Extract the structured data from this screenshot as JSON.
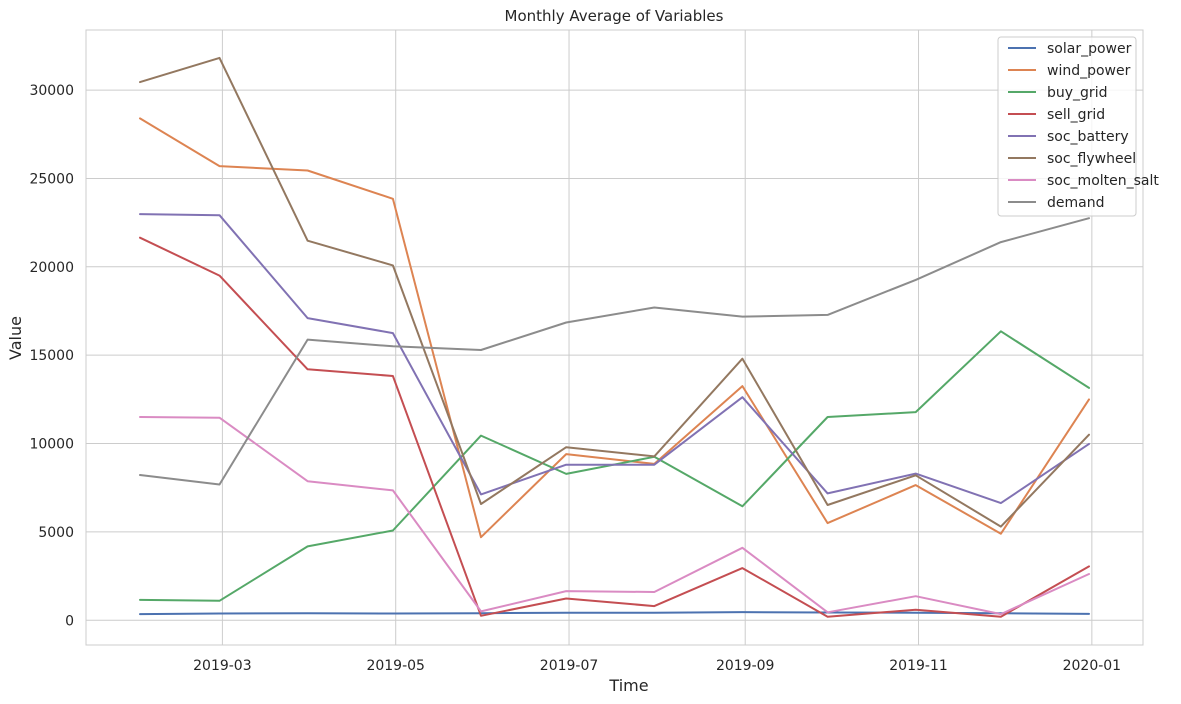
{
  "chart_data": {
    "type": "line",
    "title": "Monthly Average of Variables",
    "xlabel": "Time",
    "ylabel": "Value",
    "x": [
      "2019-01-31",
      "2019-02-28",
      "2019-03-31",
      "2019-04-30",
      "2019-05-31",
      "2019-06-30",
      "2019-07-31",
      "2019-08-31",
      "2019-09-30",
      "2019-10-31",
      "2019-11-30",
      "2019-12-31"
    ],
    "xlim": [
      "2019-01-12",
      "2020-01-19"
    ],
    "ylim": [
      -1400,
      33400
    ],
    "x_ticks": [
      {
        "value": "2019-03-01",
        "label": "2019-03"
      },
      {
        "value": "2019-05-01",
        "label": "2019-05"
      },
      {
        "value": "2019-07-01",
        "label": "2019-07"
      },
      {
        "value": "2019-09-01",
        "label": "2019-09"
      },
      {
        "value": "2019-11-01",
        "label": "2019-11"
      },
      {
        "value": "2020-01-01",
        "label": "2020-01"
      }
    ],
    "y_ticks": [
      0,
      5000,
      10000,
      15000,
      20000,
      25000,
      30000
    ],
    "y_tick_labels": [
      "0",
      "5000",
      "10000",
      "15000",
      "20000",
      "25000",
      "30000"
    ],
    "grid": true,
    "legend_position": "top-right",
    "series": [
      {
        "name": "solar_power",
        "color": "#4c72b0",
        "values": [
          350,
          380,
          400,
          380,
          400,
          430,
          430,
          460,
          440,
          430,
          400,
          360
        ]
      },
      {
        "name": "wind_power",
        "color": "#dd8452",
        "values": [
          28400,
          25700,
          25450,
          23850,
          4700,
          9400,
          8850,
          13250,
          5500,
          7650,
          4900,
          12500
        ]
      },
      {
        "name": "buy_grid",
        "color": "#55a868",
        "values": [
          1150,
          1100,
          4180,
          5080,
          10450,
          8280,
          9250,
          6450,
          11500,
          11780,
          16350,
          13150
        ]
      },
      {
        "name": "sell_grid",
        "color": "#c44e52",
        "values": [
          21650,
          19500,
          14200,
          13820,
          250,
          1230,
          800,
          2950,
          200,
          600,
          200,
          3050
        ]
      },
      {
        "name": "soc_battery",
        "color": "#8172b3",
        "values": [
          22980,
          22920,
          17100,
          16250,
          7120,
          8800,
          8800,
          12620,
          7180,
          8300,
          6630,
          9980
        ]
      },
      {
        "name": "soc_flywheel",
        "color": "#937860",
        "values": [
          30450,
          31820,
          21480,
          20080,
          6580,
          9790,
          9270,
          14800,
          6520,
          8200,
          5300,
          10500
        ]
      },
      {
        "name": "soc_molten_salt",
        "color": "#da8bc3",
        "values": [
          11500,
          11460,
          7870,
          7350,
          500,
          1650,
          1600,
          4100,
          450,
          1360,
          350,
          2620
        ]
      },
      {
        "name": "demand",
        "color": "#8c8c8c",
        "values": [
          8220,
          7680,
          15880,
          15500,
          15290,
          16850,
          17700,
          17180,
          17280,
          19260,
          21400,
          22750
        ]
      }
    ]
  }
}
